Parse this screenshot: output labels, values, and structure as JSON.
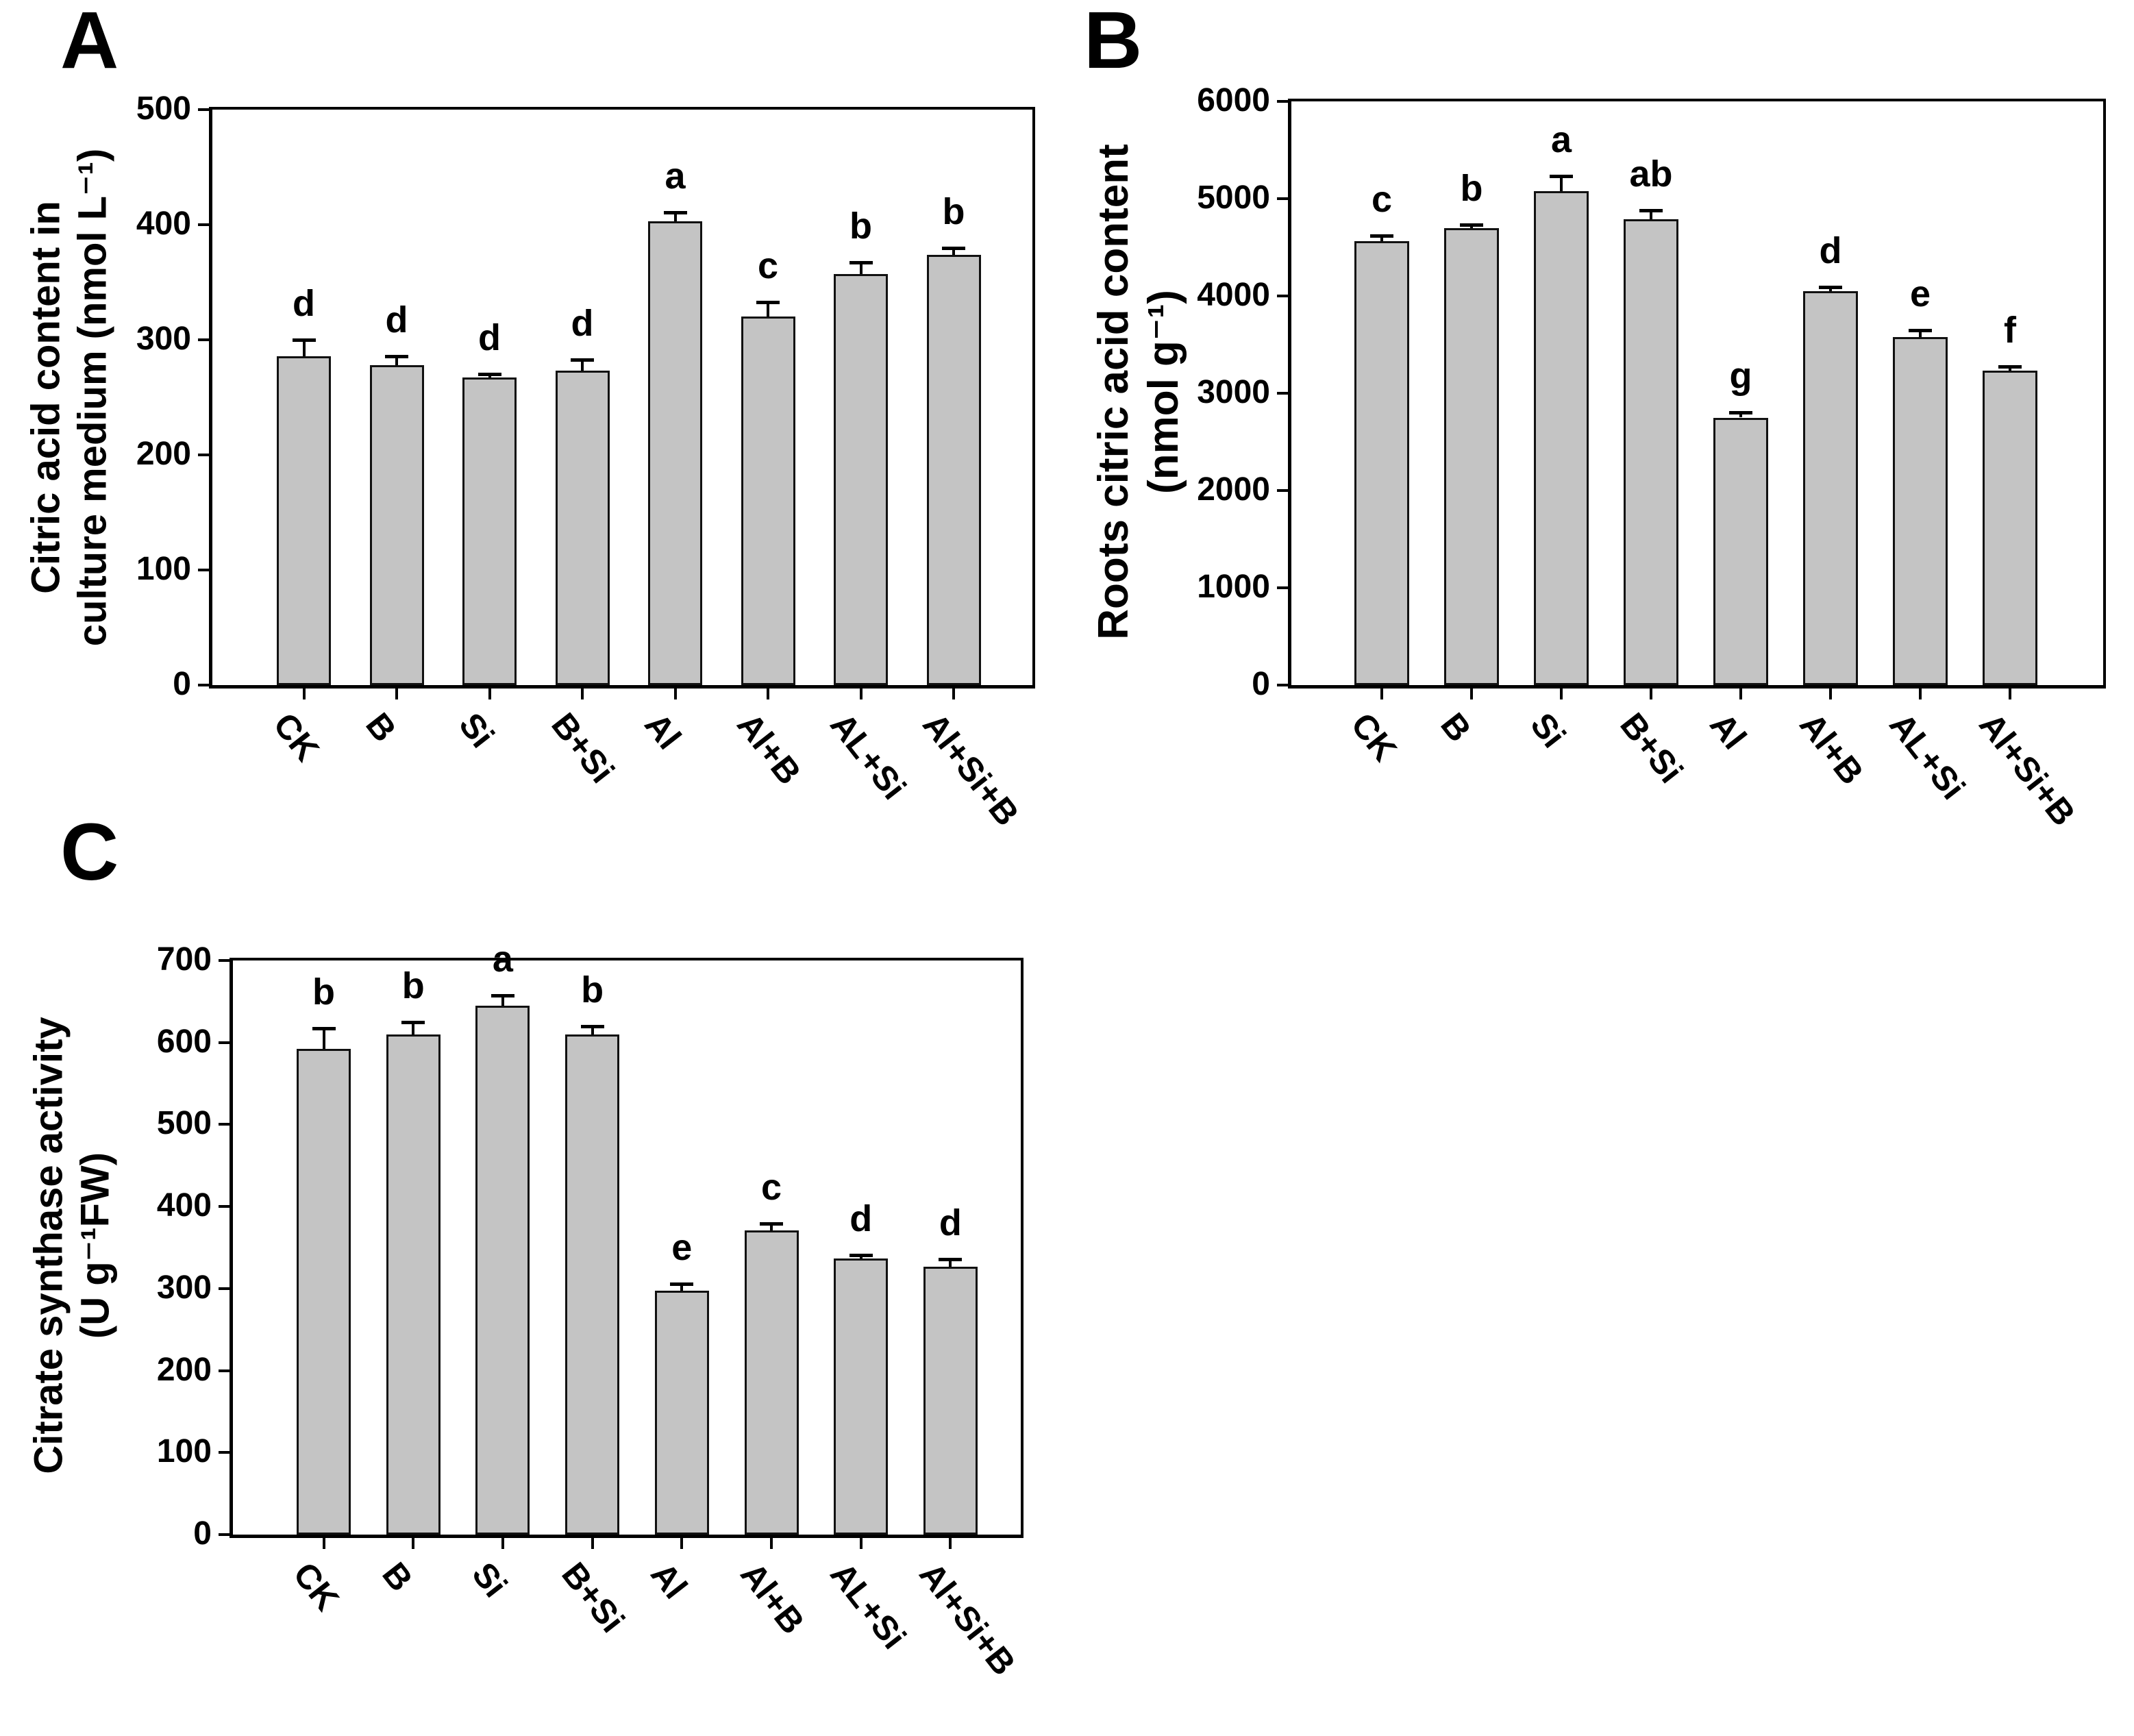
{
  "figure": {
    "background": "#ffffff",
    "bar_fill": "#c4c4c4",
    "bar_border": "#111111",
    "axis_color": "#000000",
    "text_color": "#000000"
  },
  "chart_data": [
    {
      "type": "bar",
      "panel": "A",
      "title": "",
      "ylabel": "Citric acid content in\nculture medium  (nmol L⁻¹)",
      "xlabel": "",
      "categories": [
        "CK",
        "B",
        "Si",
        "B+Si",
        "Al",
        "Al+B",
        "AL+Si",
        "Al+Si+B"
      ],
      "values": [
        286,
        278,
        267,
        273,
        403,
        320,
        357,
        374
      ],
      "errors": [
        14,
        8,
        3,
        10,
        8,
        13,
        10,
        6
      ],
      "sig_letters": [
        "d",
        "d",
        "d",
        "d",
        "a",
        "c",
        "b",
        "b"
      ],
      "ylim": [
        0,
        500
      ],
      "yticks": [
        0,
        100,
        200,
        300,
        400,
        500
      ],
      "grid": false,
      "legend": null
    },
    {
      "type": "bar",
      "panel": "B",
      "title": "",
      "ylabel": "Roots citric acid content\n(nmol g⁻¹)",
      "xlabel": "",
      "categories": [
        "CK",
        "B",
        "Si",
        "B+Si",
        "Al",
        "Al+B",
        "AL+Si",
        "Al+Si+B"
      ],
      "values": [
        4560,
        4700,
        5080,
        4790,
        2750,
        4050,
        3580,
        3230
      ],
      "errors": [
        60,
        35,
        150,
        90,
        55,
        40,
        70,
        45
      ],
      "sig_letters": [
        "c",
        "b",
        "a",
        "ab",
        "g",
        "d",
        "e",
        "f"
      ],
      "ylim": [
        0,
        6000
      ],
      "yticks": [
        0,
        1000,
        2000,
        3000,
        4000,
        5000,
        6000
      ],
      "grid": false,
      "legend": null
    },
    {
      "type": "bar",
      "panel": "C",
      "title": "",
      "ylabel": "Citrate synthase activity\n(U g⁻¹FW)",
      "xlabel": "",
      "categories": [
        "CK",
        "B",
        "Si",
        "B+Si",
        "Al",
        "Al+B",
        "AL+Si",
        "Al+Si+B"
      ],
      "values": [
        592,
        610,
        645,
        610,
        297,
        371,
        337,
        327
      ],
      "errors": [
        25,
        15,
        12,
        10,
        9,
        8,
        4,
        9
      ],
      "sig_letters": [
        "b",
        "b",
        "a",
        "b",
        "e",
        "c",
        "d",
        "d"
      ],
      "ylim": [
        0,
        700
      ],
      "yticks": [
        0,
        100,
        200,
        300,
        400,
        500,
        600,
        700
      ],
      "grid": false,
      "legend": null
    }
  ]
}
